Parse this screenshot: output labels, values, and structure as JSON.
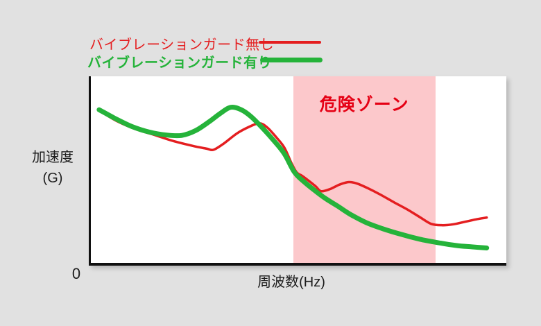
{
  "colors": {
    "background": "#e1e1e1",
    "plot_background": "#ffffff",
    "axis": "#111111",
    "axis_text": "#1c1c1c",
    "danger_zone_fill": "#fcc8cb",
    "danger_text": "#e50014",
    "red_series": "#e41e20",
    "green_series": "#25b33a"
  },
  "legend": {
    "items": [
      {
        "label": "バイブレーションガード無し",
        "color": "#e41e20",
        "bold": false,
        "line_style": "thin"
      },
      {
        "label": "バイブレーションガード有り",
        "color": "#25b33a",
        "bold": true,
        "line_style": "thick"
      }
    ]
  },
  "chart_data": {
    "type": "line",
    "title": "",
    "xlabel": "周波数(Hz)",
    "ylabel_lines": [
      "加速度",
      "(G)"
    ],
    "origin_label": "0",
    "axes": {
      "x_numeric_ticks": false,
      "y_numeric_ticks": false,
      "grid": false
    },
    "legend_position": "top-left",
    "danger_zone": {
      "label": "危険ゾーン",
      "x_frac_range": [
        0.487,
        0.829
      ]
    },
    "series": [
      {
        "name": "バイブレーションガード無し",
        "color": "#e41e20",
        "line_width": 3.5,
        "points_frac": [
          [
            0.02,
            0.817
          ],
          [
            0.062,
            0.761
          ],
          [
            0.109,
            0.716
          ],
          [
            0.152,
            0.687
          ],
          [
            0.199,
            0.653
          ],
          [
            0.246,
            0.627
          ],
          [
            0.28,
            0.612
          ],
          [
            0.296,
            0.606
          ],
          [
            0.32,
            0.638
          ],
          [
            0.353,
            0.694
          ],
          [
            0.384,
            0.731
          ],
          [
            0.407,
            0.748
          ],
          [
            0.425,
            0.728
          ],
          [
            0.447,
            0.675
          ],
          [
            0.467,
            0.619
          ],
          [
            0.484,
            0.537
          ],
          [
            0.497,
            0.485
          ],
          [
            0.509,
            0.468
          ],
          [
            0.524,
            0.444
          ],
          [
            0.543,
            0.41
          ],
          [
            0.556,
            0.384
          ],
          [
            0.578,
            0.396
          ],
          [
            0.601,
            0.42
          ],
          [
            0.623,
            0.433
          ],
          [
            0.643,
            0.425
          ],
          [
            0.668,
            0.401
          ],
          [
            0.699,
            0.366
          ],
          [
            0.732,
            0.325
          ],
          [
            0.766,
            0.284
          ],
          [
            0.796,
            0.243
          ],
          [
            0.822,
            0.209
          ],
          [
            0.849,
            0.202
          ],
          [
            0.876,
            0.207
          ],
          [
            0.903,
            0.22
          ],
          [
            0.93,
            0.233
          ],
          [
            0.956,
            0.243
          ]
        ]
      },
      {
        "name": "バイブレーションガード有り",
        "color": "#25b33a",
        "line_width": 7,
        "points_frac": [
          [
            0.02,
            0.821
          ],
          [
            0.057,
            0.776
          ],
          [
            0.099,
            0.731
          ],
          [
            0.141,
            0.701
          ],
          [
            0.183,
            0.685
          ],
          [
            0.219,
            0.683
          ],
          [
            0.253,
            0.709
          ],
          [
            0.286,
            0.757
          ],
          [
            0.313,
            0.802
          ],
          [
            0.338,
            0.834
          ],
          [
            0.363,
            0.821
          ],
          [
            0.387,
            0.784
          ],
          [
            0.414,
            0.724
          ],
          [
            0.44,
            0.66
          ],
          [
            0.467,
            0.586
          ],
          [
            0.492,
            0.485
          ],
          [
            0.518,
            0.429
          ],
          [
            0.543,
            0.384
          ],
          [
            0.568,
            0.343
          ],
          [
            0.595,
            0.306
          ],
          [
            0.626,
            0.261
          ],
          [
            0.665,
            0.216
          ],
          [
            0.705,
            0.183
          ],
          [
            0.749,
            0.153
          ],
          [
            0.794,
            0.127
          ],
          [
            0.839,
            0.108
          ],
          [
            0.883,
            0.093
          ],
          [
            0.92,
            0.086
          ],
          [
            0.956,
            0.08
          ]
        ]
      }
    ]
  }
}
